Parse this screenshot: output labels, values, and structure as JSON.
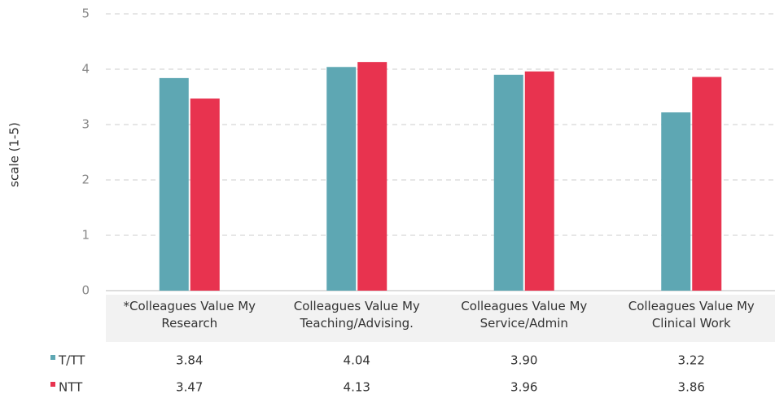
{
  "chart_data": {
    "type": "bar",
    "y_label": "scale (1-5)",
    "categories": [
      "*Colleagues Value My Research",
      "Colleagues Value My Teaching/Advising.",
      "Colleagues Value My Service/Admin",
      "Colleagues Value My Clinical Work"
    ],
    "series": [
      {
        "name": "T/TT",
        "color": "#5ea7b3",
        "values": [
          3.84,
          4.04,
          3.9,
          3.22
        ],
        "value_labels": [
          "3.84",
          "4.04",
          "3.90",
          "3.22"
        ]
      },
      {
        "name": "NTT",
        "color": "#e8334f",
        "values": [
          3.47,
          4.13,
          3.96,
          3.86
        ],
        "value_labels": [
          "3.47",
          "4.13",
          "3.96",
          "3.86"
        ]
      }
    ],
    "ylim": [
      0,
      5
    ],
    "yticks": [
      0,
      1,
      2,
      3,
      4,
      5
    ],
    "grid": true
  }
}
